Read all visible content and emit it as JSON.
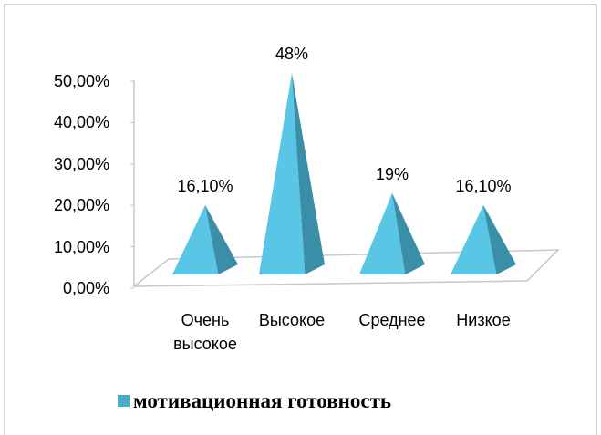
{
  "chart_data": {
    "type": "pyramid",
    "categories": [
      "Очень высокое",
      "Высокое",
      "Среднее",
      "Низкое"
    ],
    "series": [
      {
        "name": "мотивационная готовность",
        "color": "#4bacc6",
        "values": [
          16.1,
          48,
          19,
          16.1
        ],
        "value_labels": [
          "16,10%",
          "48%",
          "19%",
          "16,10%"
        ]
      }
    ],
    "ylim": [
      0,
      50
    ],
    "yticks": [
      {
        "value": 0,
        "label": "0,00%"
      },
      {
        "value": 10,
        "label": "10,00%"
      },
      {
        "value": 20,
        "label": "20,00%"
      },
      {
        "value": 30,
        "label": "30,00%"
      },
      {
        "value": 40,
        "label": "40,00%"
      },
      {
        "value": 50,
        "label": "50,00%"
      }
    ],
    "legend": "bottom"
  }
}
